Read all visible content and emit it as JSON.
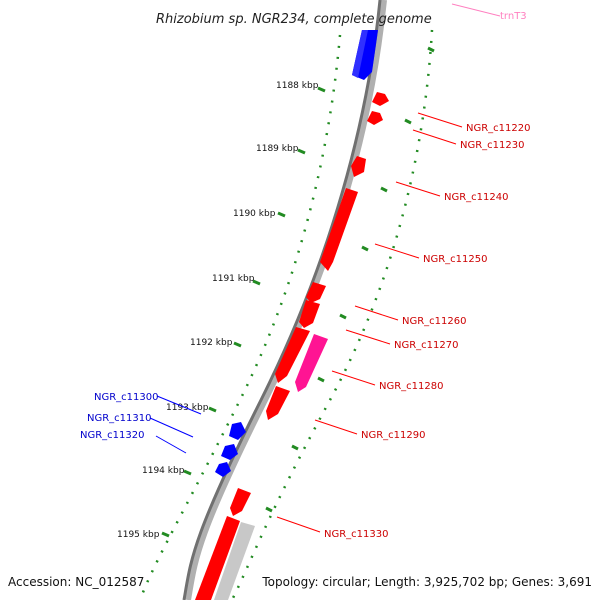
{
  "title": "Rhizobium sp. NGR234, complete genome",
  "accession": "Accession: NC_012587",
  "topology": "Topology: circular; Length: 3,925,702 bp; Genes: 3,691",
  "colors": {
    "forward_gene": "#ff0000",
    "reverse_gene": "#0000ff",
    "highlight_gene": "#ff1493",
    "trna_gene": "#ff80c0",
    "grey_gene": "#c8c8c8",
    "backbone": "#808080",
    "tick": "#228b22"
  },
  "tick_labels": [
    "1188 kbp",
    "1189 kbp",
    "1190 kbp",
    "1191 kbp",
    "1192 kbp",
    "1193 kbp",
    "1194 kbp",
    "1195 kbp"
  ],
  "genes": [
    {
      "id": "trnT3",
      "label": "trnT3",
      "strand": "top",
      "color": "#ff80c0"
    },
    {
      "id": "NGR_c11220",
      "label": "NGR_c11220",
      "strand": "forward",
      "color": "#ff0000"
    },
    {
      "id": "NGR_c11230",
      "label": "NGR_c11230",
      "strand": "forward",
      "color": "#ff0000"
    },
    {
      "id": "NGR_c11240",
      "label": "NGR_c11240",
      "strand": "forward",
      "color": "#ff0000"
    },
    {
      "id": "NGR_c11250",
      "label": "NGR_c11250",
      "strand": "forward",
      "color": "#ff0000"
    },
    {
      "id": "NGR_c11260",
      "label": "NGR_c11260",
      "strand": "forward",
      "color": "#ff0000"
    },
    {
      "id": "NGR_c11270",
      "label": "NGR_c11270",
      "strand": "forward",
      "color": "#ff0000"
    },
    {
      "id": "NGR_c11280",
      "label": "NGR_c11280",
      "strand": "forward",
      "color": "#ff1493"
    },
    {
      "id": "NGR_c11290",
      "label": "NGR_c11290",
      "strand": "forward",
      "color": "#ff0000"
    },
    {
      "id": "NGR_c11300",
      "label": "NGR_c11300",
      "strand": "reverse",
      "color": "#0000ff"
    },
    {
      "id": "NGR_c11310",
      "label": "NGR_c11310",
      "strand": "reverse",
      "color": "#0000ff"
    },
    {
      "id": "NGR_c11320",
      "label": "NGR_c11320",
      "strand": "reverse",
      "color": "#0000ff"
    },
    {
      "id": "NGR_c11330",
      "label": "NGR_c11330",
      "strand": "forward",
      "color": "#ff0000"
    }
  ]
}
